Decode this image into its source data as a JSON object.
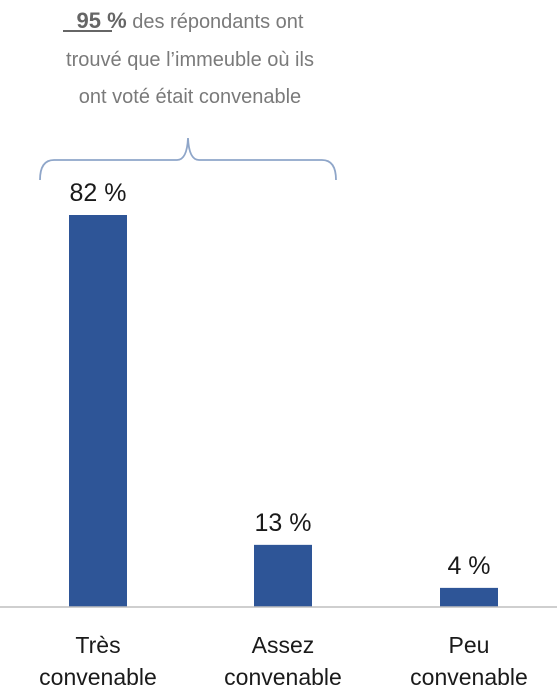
{
  "annotation": {
    "highlight": "95 %",
    "line1_rest": " des répondants ont",
    "line2": "trouvé que l’immeuble où ils",
    "line3": "ont voté était convenable"
  },
  "colors": {
    "bar": "#2e5597",
    "axis": "#bfbfbf",
    "bracket": "#8fa6c9",
    "annotation_text": "#7a7a7a"
  },
  "chart_data": {
    "type": "bar",
    "categories": [
      [
        "Très",
        "convenable"
      ],
      [
        "Assez",
        "convenable"
      ],
      [
        "Peu",
        "convenable"
      ]
    ],
    "values": [
      82,
      13,
      4
    ],
    "data_labels": [
      "82 %",
      "13 %",
      "4 %"
    ],
    "unit": "%",
    "ylim": [
      0,
      82
    ],
    "grid": false,
    "legend": "none"
  }
}
